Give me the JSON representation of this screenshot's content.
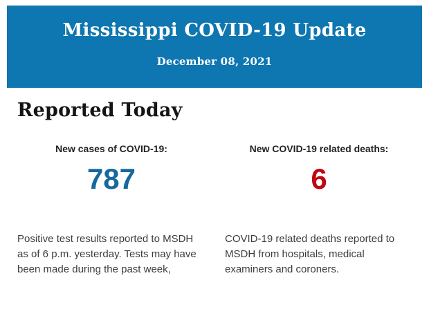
{
  "banner": {
    "title": "Mississippi COVID-19 Update",
    "date": "December 08, 2021",
    "background_color": "#0e76b0",
    "text_color": "#ffffff"
  },
  "section": {
    "heading": "Reported Today"
  },
  "stats": {
    "cases": {
      "label": "New cases of COVID-19:",
      "value": "787",
      "value_color": "#17689e",
      "description": "Positive test results reported to MSDH as of 6 p.m. yesterday. Tests may have been made during the past week,"
    },
    "deaths": {
      "label": "New COVID-19 related deaths:",
      "value": "6",
      "value_color": "#c00713",
      "description": "COVID-19 related deaths reported to MSDH from hospitals, medical examiners and coroners."
    }
  }
}
